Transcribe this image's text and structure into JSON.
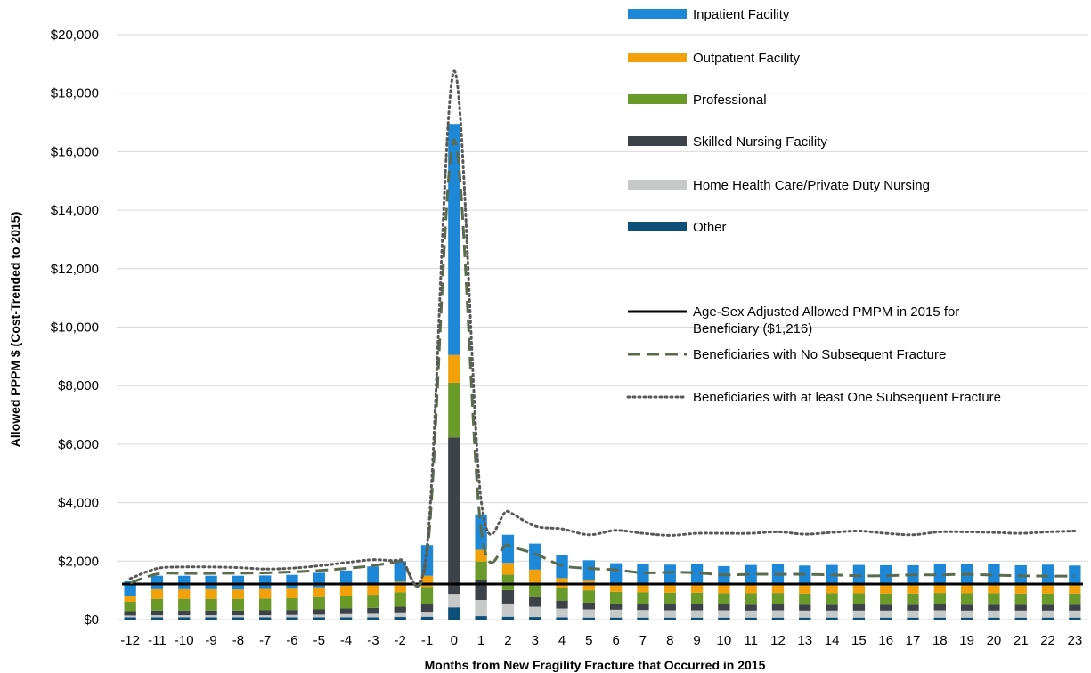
{
  "chart_data": {
    "type": "bar",
    "stacked": true,
    "xlabel": "Months from New Fragility Fracture that Occurred in 2015",
    "ylabel": "Allowed PPPM $ (Cost-Trended to 2015)",
    "ylim": [
      0,
      20000
    ],
    "y_ticks": [
      0,
      2000,
      4000,
      6000,
      8000,
      10000,
      12000,
      14000,
      16000,
      18000,
      20000
    ],
    "y_tick_labels": [
      "$0",
      "$2,000",
      "$4,000",
      "$6,000",
      "$8,000",
      "$10,000",
      "$12,000",
      "$14,000",
      "$16,000",
      "$18,000",
      "$20,000"
    ],
    "grid": true,
    "legend_position": "top-right",
    "categories": [
      "-12",
      "-11",
      "-10",
      "-9",
      "-8",
      "-7",
      "-6",
      "-5",
      "-4",
      "-3",
      "-2",
      "-1",
      "0",
      "1",
      "2",
      "3",
      "4",
      "5",
      "6",
      "7",
      "8",
      "9",
      "10",
      "11",
      "12",
      "13",
      "14",
      "15",
      "16",
      "17",
      "18",
      "19",
      "20",
      "21",
      "22",
      "23"
    ],
    "series": [
      {
        "name": "Other",
        "color": "#0e4f7a",
        "values": [
          80,
          80,
          80,
          80,
          80,
          80,
          80,
          80,
          80,
          80,
          90,
          100,
          420,
          120,
          100,
          90,
          80,
          70,
          70,
          70,
          70,
          70,
          70,
          70,
          70,
          70,
          70,
          70,
          70,
          70,
          70,
          70,
          70,
          70,
          70,
          70
        ]
      },
      {
        "name": "Home Health Care/Private Duty Nursing",
        "color": "#c7c9c8",
        "values": [
          60,
          70,
          70,
          70,
          70,
          70,
          80,
          90,
          110,
          120,
          130,
          140,
          460,
          550,
          450,
          350,
          300,
          280,
          270,
          260,
          250,
          250,
          250,
          240,
          250,
          240,
          240,
          240,
          240,
          240,
          250,
          240,
          240,
          240,
          240,
          240
        ]
      },
      {
        "name": "Skilled Nursing Facility",
        "color": "#3d4148",
        "values": [
          150,
          160,
          160,
          160,
          160,
          170,
          170,
          180,
          190,
          200,
          220,
          300,
          5350,
          700,
          460,
          330,
          270,
          230,
          210,
          200,
          200,
          200,
          200,
          200,
          200,
          200,
          200,
          210,
          200,
          200,
          200,
          200,
          200,
          200,
          200,
          200
        ]
      },
      {
        "name": "Professional",
        "color": "#6a9a2a",
        "values": [
          320,
          400,
          400,
          400,
          400,
          400,
          400,
          420,
          430,
          450,
          490,
          580,
          1870,
          620,
          530,
          440,
          420,
          420,
          400,
          400,
          400,
          400,
          380,
          390,
          390,
          380,
          390,
          380,
          380,
          380,
          390,
          390,
          390,
          380,
          380,
          380
        ]
      },
      {
        "name": "Outpatient Facility",
        "color": "#f3a10a",
        "values": [
          200,
          330,
          330,
          330,
          320,
          330,
          330,
          340,
          350,
          360,
          370,
          380,
          950,
          400,
          400,
          500,
          350,
          330,
          310,
          300,
          290,
          290,
          280,
          290,
          290,
          280,
          290,
          280,
          280,
          280,
          290,
          290,
          290,
          280,
          280,
          280
        ]
      },
      {
        "name": "Inpatient Facility",
        "color": "#1e88d8",
        "values": [
          500,
          460,
          460,
          460,
          470,
          460,
          470,
          490,
          520,
          610,
          700,
          1050,
          7900,
          1210,
          960,
          890,
          800,
          700,
          670,
          660,
          670,
          680,
          650,
          680,
          690,
          680,
          680,
          690,
          690,
          690,
          700,
          710,
          700,
          690,
          710,
          680
        ]
      }
    ],
    "reference_line": {
      "name": "Age-Sex Adjusted Allowed PMPM in 2015 for Beneficiary ($1,216)",
      "value": 1216,
      "color": "#000000"
    },
    "lines": [
      {
        "name": "Beneficiaries with No Subsequent Fracture",
        "style": "dashed",
        "color": "#5b6b4f",
        "values": [
          1250,
          1560,
          1580,
          1580,
          1590,
          1600,
          1630,
          1680,
          1750,
          1850,
          2000,
          2250,
          16400,
          3100,
          2550,
          2250,
          1850,
          1750,
          1700,
          1600,
          1620,
          1600,
          1530,
          1550,
          1550,
          1550,
          1530,
          1500,
          1500,
          1530,
          1530,
          1550,
          1520,
          1500,
          1490,
          1490
        ]
      },
      {
        "name": "Beneficiaries with at least One Subsequent Fracture",
        "style": "dotted",
        "color": "#595959",
        "values": [
          1400,
          1750,
          1800,
          1800,
          1780,
          1730,
          1760,
          1840,
          1950,
          2050,
          2050,
          2500,
          18750,
          4100,
          3700,
          3200,
          3100,
          2900,
          3050,
          2950,
          2880,
          2950,
          2950,
          2950,
          3000,
          2920,
          2980,
          3030,
          2950,
          2900,
          3000,
          3000,
          2980,
          2950,
          3000,
          3030
        ]
      }
    ],
    "legend_labels": {
      "inpatient": "Inpatient Facility",
      "outpatient": "Outpatient Facility",
      "professional": "Professional",
      "snf": "Skilled Nursing Facility",
      "hhc": "Home Health Care/Private Duty Nursing",
      "other": "Other",
      "ref_line_1": "Age-Sex Adjusted Allowed PMPM in 2015 for",
      "ref_line_2": "Beneficiary ($1,216)",
      "no_subsequent": "Beneficiaries with No Subsequent Fracture",
      "subsequent": "Beneficiaries with at least One Subsequent Fracture"
    }
  }
}
